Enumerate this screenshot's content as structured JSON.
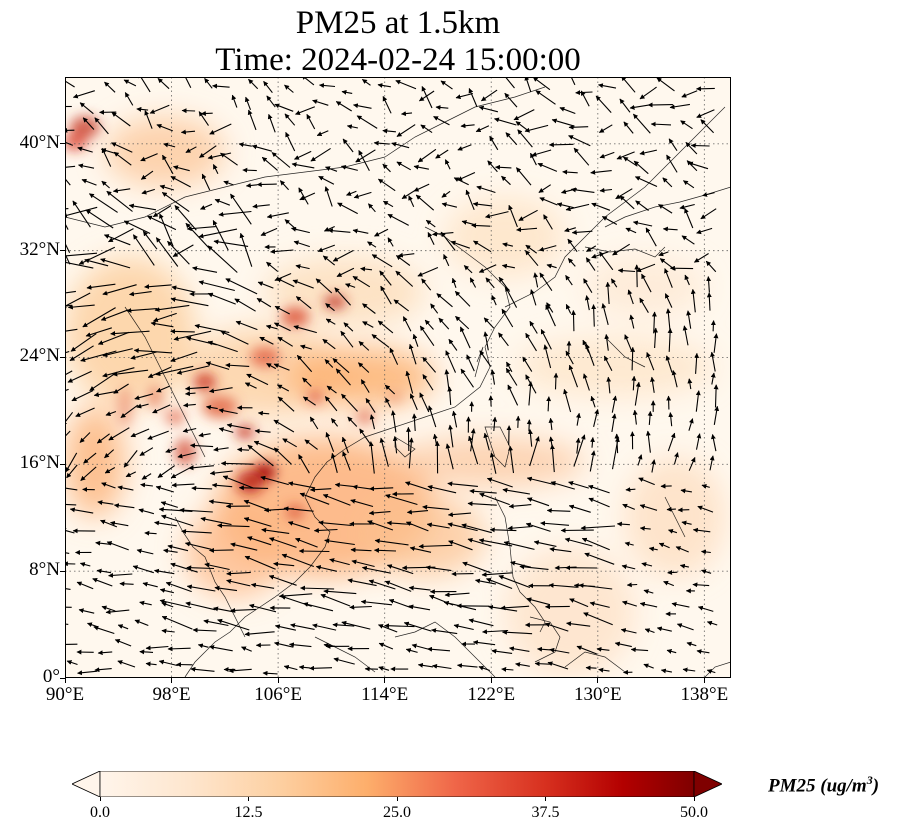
{
  "title": {
    "line1": "PM25 at 1.5km",
    "line2": "Time: 2024-02-24 15:00:00"
  },
  "map": {
    "lon_range": [
      90,
      140
    ],
    "lat_range": [
      0,
      45
    ],
    "x_ticks": [
      "90°E",
      "98°E",
      "106°E",
      "114°E",
      "122°E",
      "130°E",
      "138°E"
    ],
    "x_tick_values": [
      90,
      98,
      106,
      114,
      122,
      130,
      138
    ],
    "y_ticks": [
      "0°",
      "8°N",
      "16°N",
      "24°N",
      "32°N",
      "40°N"
    ],
    "y_tick_values": [
      0,
      8,
      16,
      24,
      32,
      40
    ],
    "gridlines": "dotted",
    "field": "PM25",
    "vectors": "wind arrows",
    "colors": {
      "low": "#fff5eb",
      "mid": "#fdae6b",
      "high": "#7f0000",
      "arrow": "#000000"
    }
  },
  "colorbar": {
    "labels": [
      "0.0",
      "12.5",
      "25.0",
      "37.5",
      "50.0"
    ],
    "values": [
      0,
      12.5,
      25,
      37.5,
      50
    ],
    "extend": "both",
    "colormap": "OrRd",
    "title_main": "PM25 (ug/m",
    "title_sup": "3",
    "title_end": ")"
  }
}
